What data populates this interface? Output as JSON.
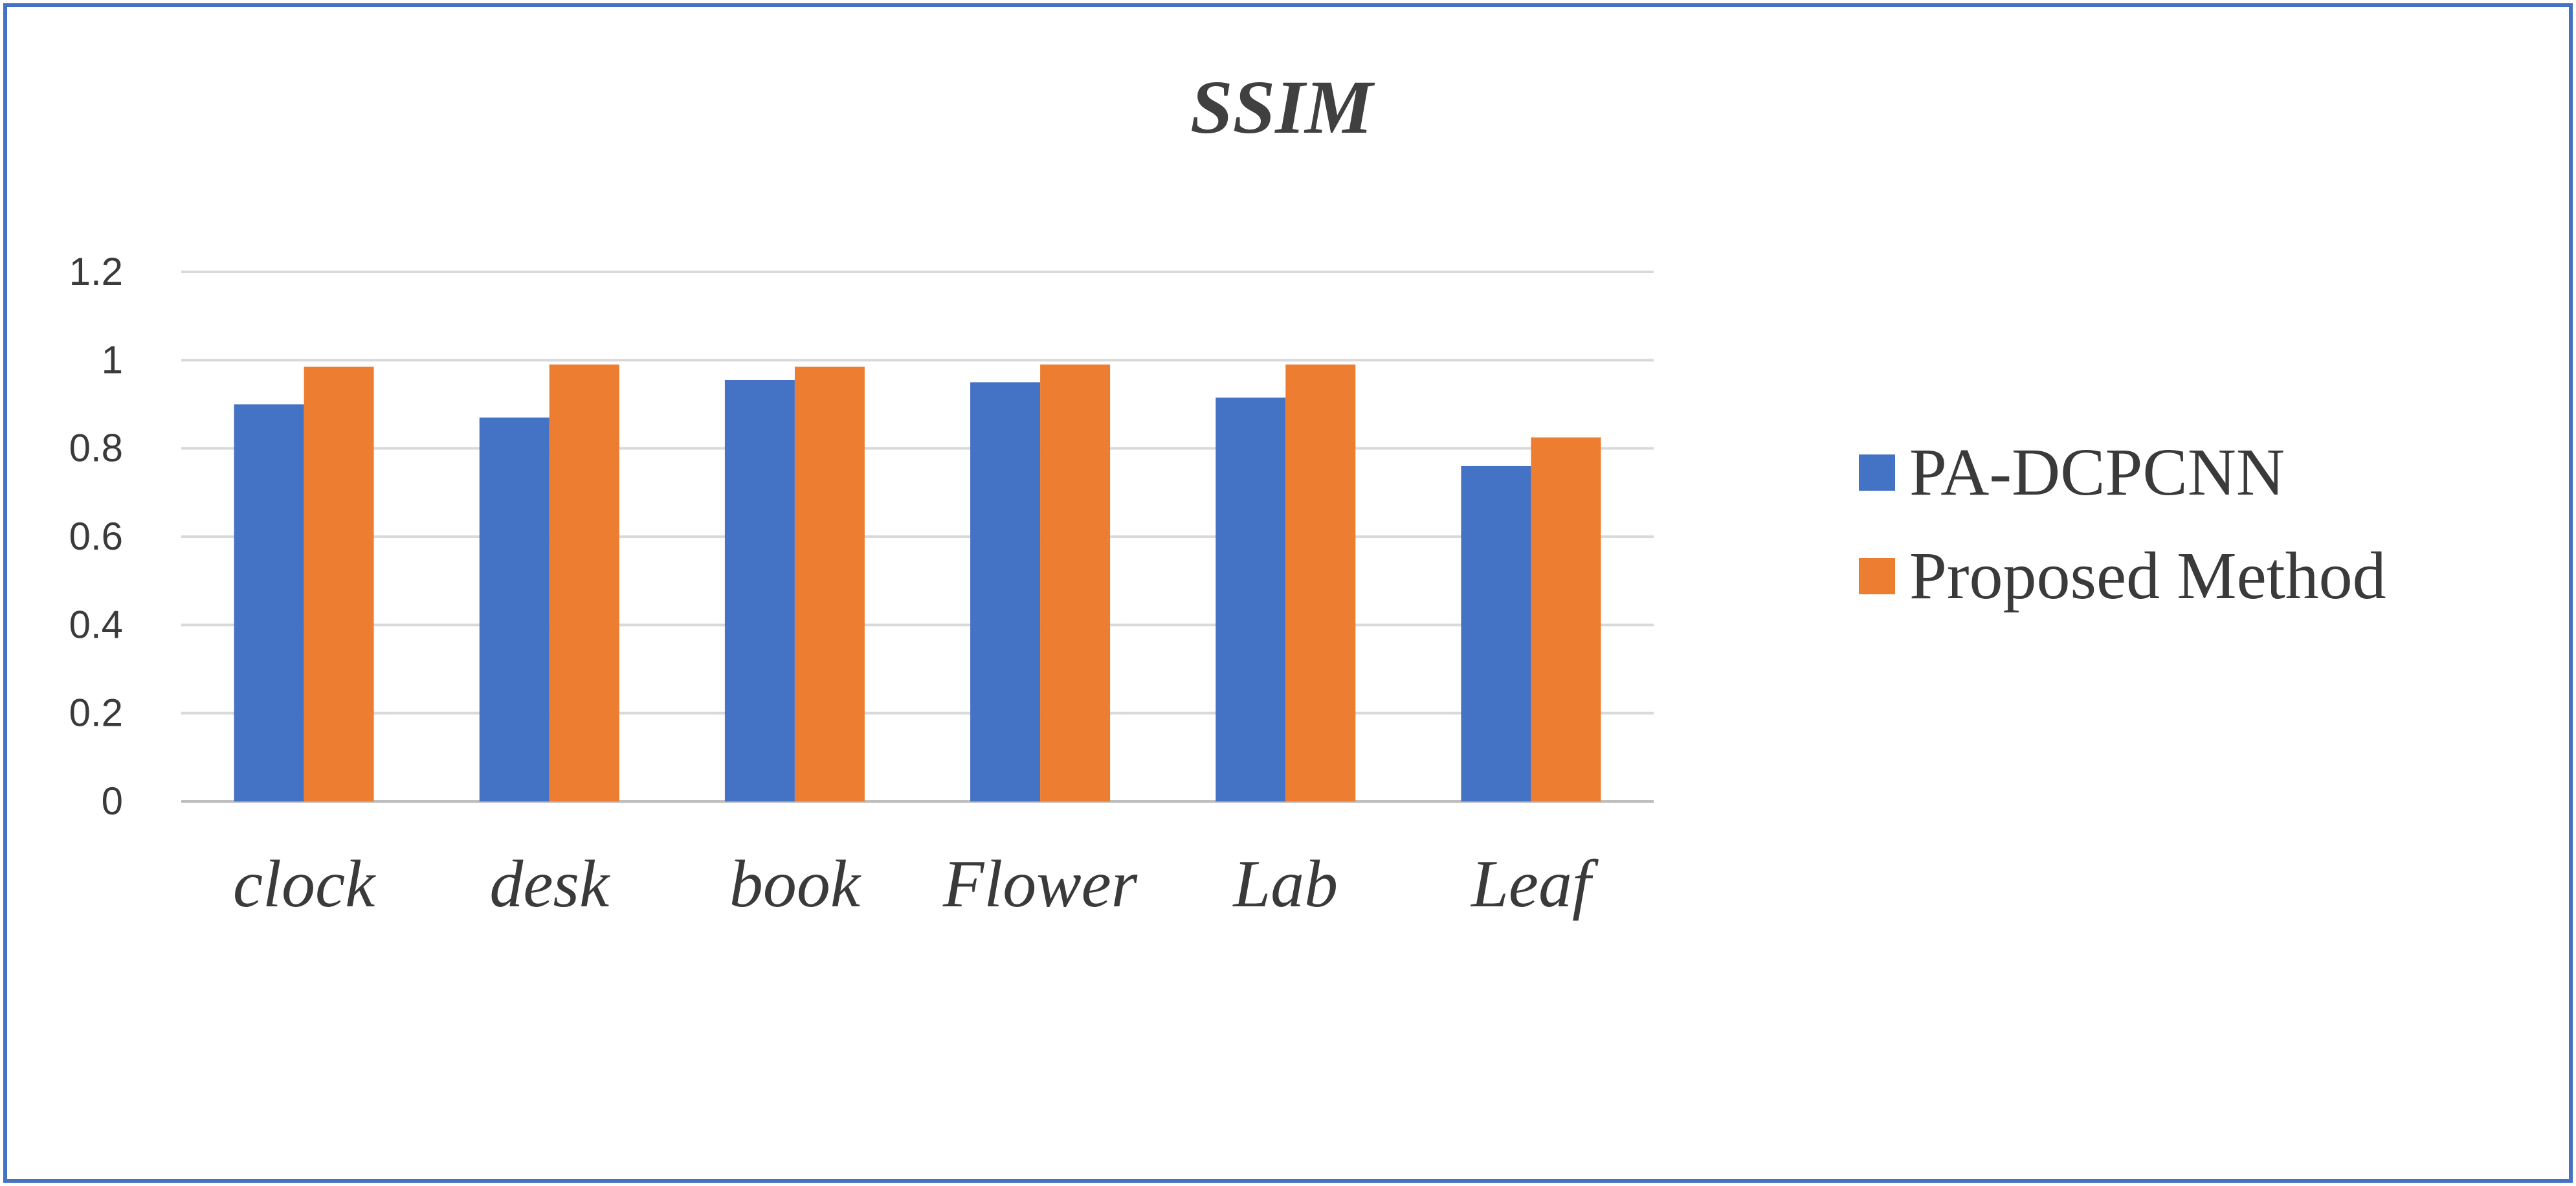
{
  "chart_data": {
    "type": "bar",
    "title": "SSIM",
    "categories": [
      "clock",
      "desk",
      "book",
      "Flower",
      "Lab",
      "Leaf"
    ],
    "series": [
      {
        "name": "PA-DCPCNN",
        "color": "#4472C4",
        "values": [
          0.9,
          0.87,
          0.955,
          0.95,
          0.915,
          0.76
        ]
      },
      {
        "name": "Proposed Method",
        "color": "#ED7D31",
        "values": [
          0.985,
          0.99,
          0.985,
          0.99,
          0.99,
          0.825
        ]
      }
    ],
    "y_ticks": [
      "0",
      "0.2",
      "0.4",
      "0.6",
      "0.8",
      "1",
      "1.2"
    ],
    "ylim": [
      0,
      1.2
    ],
    "grid": true,
    "legend_position": "right",
    "frame_color": "#4472C4"
  }
}
